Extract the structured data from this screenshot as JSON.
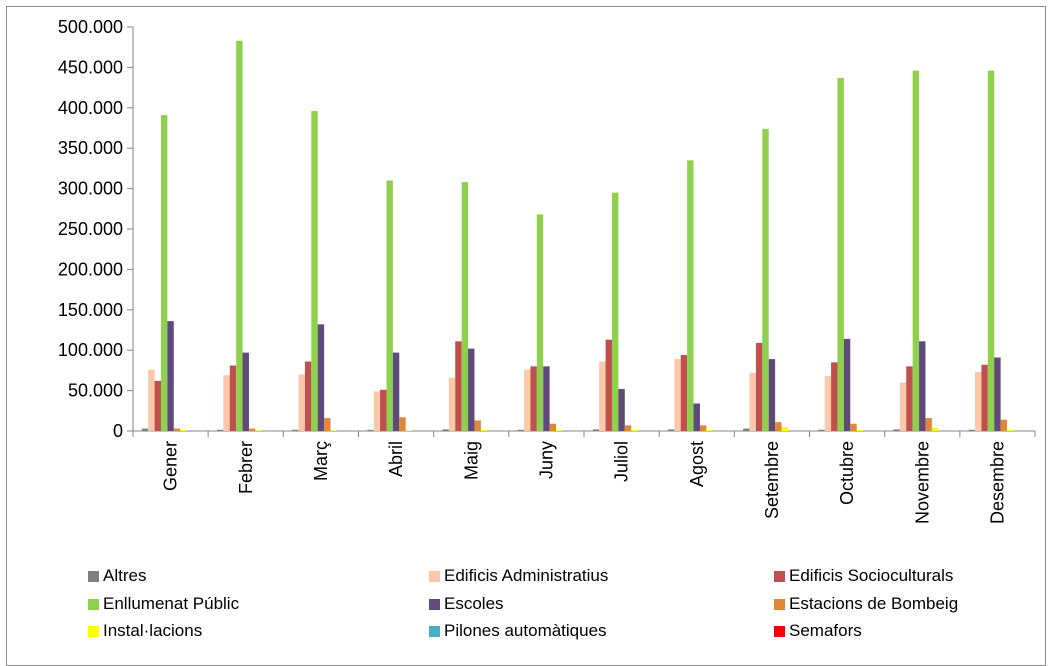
{
  "chart_data": {
    "type": "bar",
    "categories": [
      "Gener",
      "Febrer",
      "Març",
      "Abril",
      "Maig",
      "Juny",
      "Juliol",
      "Agost",
      "Setembre",
      "Octubre",
      "Novembre",
      "Desembre"
    ],
    "ylim": [
      0,
      500000
    ],
    "yticks": [
      "0",
      "50.000",
      "100.000",
      "150.000",
      "200.000",
      "250.000",
      "300.000",
      "350.000",
      "400.000",
      "450.000",
      "500.000"
    ],
    "grid": false,
    "legend_position": "bottom",
    "series": [
      {
        "name": "Altres",
        "color": "#808080",
        "values": [
          3000,
          1500,
          1500,
          1500,
          2000,
          1500,
          2000,
          2000,
          3000,
          1500,
          2000,
          1500
        ]
      },
      {
        "name": "Edificis Administratius",
        "color": "#fbc9a9",
        "values": [
          76000,
          69000,
          70000,
          49000,
          66000,
          76000,
          86000,
          89000,
          72000,
          68000,
          60000,
          73000
        ]
      },
      {
        "name": "Edificis Socioculturals",
        "color": "#c0504d",
        "values": [
          62000,
          81000,
          86000,
          51000,
          111000,
          80000,
          113000,
          94000,
          109000,
          85000,
          80000,
          82000
        ]
      },
      {
        "name": "Enllumenat Públic",
        "color": "#8fd14f",
        "values": [
          391000,
          483000,
          396000,
          310000,
          308000,
          268000,
          295000,
          335000,
          374000,
          437000,
          446000,
          446000
        ]
      },
      {
        "name": "Escoles",
        "color": "#604a7b",
        "values": [
          136000,
          97000,
          132000,
          97000,
          102000,
          80000,
          52000,
          34000,
          89000,
          114000,
          111000,
          91000
        ]
      },
      {
        "name": "Estacions de Bombeig",
        "color": "#e0873a",
        "values": [
          3000,
          3000,
          16000,
          17000,
          13000,
          9000,
          7000,
          7000,
          11000,
          9000,
          16000,
          14000
        ]
      },
      {
        "name": "Instal·lacions",
        "color": "#ffff00",
        "values": [
          1000,
          500,
          500,
          500,
          1000,
          1000,
          1000,
          1000,
          5000,
          1000,
          4000,
          1000
        ]
      },
      {
        "name": "Pilones automàtiques",
        "color": "#4bacc6",
        "values": [
          0,
          0,
          0,
          0,
          0,
          0,
          0,
          0,
          0,
          0,
          0,
          0
        ]
      },
      {
        "name": "Semafors",
        "color": "#ff0000",
        "values": [
          0,
          0,
          0,
          0,
          0,
          0,
          0,
          0,
          0,
          0,
          0,
          0
        ]
      }
    ]
  }
}
